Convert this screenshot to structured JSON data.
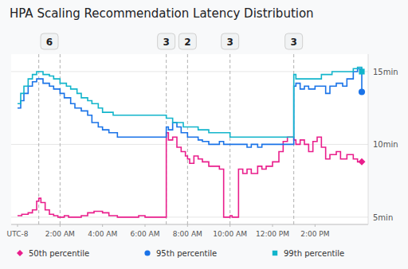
{
  "chart_data": {
    "type": "step",
    "title": "HPA Scaling Recommendation Latency Distribution",
    "xlim": [
      -0.3,
      16.5
    ],
    "ylim": [
      4.5,
      16.2
    ],
    "xticks": [
      {
        "value": 0,
        "label": "UTC-8"
      },
      {
        "value": 2,
        "label": "2:00 AM"
      },
      {
        "value": 4,
        "label": "4:00 AM"
      },
      {
        "value": 6,
        "label": "6:00 AM"
      },
      {
        "value": 8,
        "label": "8:00 AM"
      },
      {
        "value": 10,
        "label": "10:00 AM"
      },
      {
        "value": 12,
        "label": "12:00 PM"
      },
      {
        "value": 14,
        "label": "2:00 PM"
      }
    ],
    "yticks": [
      {
        "value": 5,
        "label": "5min"
      },
      {
        "value": 10,
        "label": "10min"
      },
      {
        "value": 15,
        "label": "15min"
      }
    ],
    "grid": true,
    "vlines": [
      1.0,
      2.0,
      7.0,
      8.0,
      10.0,
      13.0
    ],
    "annotations": [
      {
        "x": 1.5,
        "text": "6"
      },
      {
        "x": 7.0,
        "text": "3"
      },
      {
        "x": 8.0,
        "text": "2"
      },
      {
        "x": 10.0,
        "text": "3"
      },
      {
        "x": 13.0,
        "text": "3"
      }
    ],
    "series": [
      {
        "name": "50th percentile",
        "color": "#e91e8c",
        "marker": "diamond",
        "end_x": 16.2,
        "end_value": 8.8,
        "x": [
          0.0,
          0.2,
          0.5,
          0.7,
          0.9,
          1.0,
          1.1,
          1.3,
          1.5,
          1.7,
          1.9,
          2.0,
          2.2,
          2.4,
          2.7,
          3.0,
          3.3,
          3.6,
          4.0,
          4.3,
          4.7,
          5.0,
          5.3,
          5.7,
          6.0,
          6.3,
          6.7,
          7.0,
          7.1,
          7.3,
          7.5,
          7.7,
          7.9,
          8.0,
          8.1,
          8.3,
          8.5,
          8.7,
          9.0,
          9.3,
          9.5,
          9.7,
          10.0,
          10.1,
          10.2,
          10.4,
          10.6,
          10.8,
          11.0,
          11.3,
          11.5,
          11.7,
          12.0,
          12.3,
          12.5,
          12.7,
          13.0,
          13.1,
          13.3,
          13.5,
          13.7,
          13.9,
          14.1,
          14.3,
          14.5,
          14.7,
          15.0,
          15.2,
          15.5,
          15.8,
          16.0,
          16.2
        ],
        "values": [
          5.1,
          5.2,
          5.3,
          5.5,
          6.1,
          6.3,
          6.0,
          5.5,
          5.2,
          5.1,
          5.0,
          5.0,
          5.1,
          5.0,
          5.0,
          5.1,
          5.3,
          5.4,
          5.3,
          5.1,
          5.0,
          5.0,
          5.0,
          5.1,
          5.0,
          5.0,
          5.0,
          10.8,
          10.3,
          10.5,
          9.8,
          9.5,
          9.2,
          9.0,
          8.7,
          9.2,
          9.0,
          8.8,
          8.5,
          8.5,
          8.3,
          5.0,
          5.1,
          5.0,
          5.0,
          8.3,
          8.0,
          8.3,
          8.0,
          8.5,
          8.3,
          8.5,
          8.8,
          9.5,
          10.2,
          10.5,
          10.3,
          10.0,
          10.3,
          10.0,
          9.5,
          10.2,
          10.5,
          9.8,
          9.0,
          9.3,
          9.5,
          9.0,
          9.3,
          9.0,
          8.8,
          8.8
        ]
      },
      {
        "name": "95th percentile",
        "color": "#1a73e8",
        "marker": "circle",
        "end_x": 16.2,
        "end_value": 13.6,
        "x": [
          0.0,
          0.15,
          0.3,
          0.5,
          0.7,
          0.9,
          1.0,
          1.2,
          1.5,
          1.7,
          2.0,
          2.2,
          2.5,
          2.7,
          3.0,
          3.3,
          3.5,
          3.8,
          4.0,
          4.3,
          4.7,
          5.0,
          5.5,
          6.0,
          6.5,
          7.0,
          7.1,
          7.3,
          7.5,
          7.7,
          8.0,
          8.3,
          8.5,
          8.7,
          9.0,
          9.3,
          9.5,
          9.7,
          10.0,
          10.3,
          10.5,
          10.8,
          11.0,
          11.3,
          11.5,
          11.8,
          12.0,
          12.5,
          12.8,
          13.0,
          13.1,
          13.3,
          13.5,
          13.7,
          14.0,
          14.3,
          14.5,
          14.7,
          15.0,
          15.3,
          15.5,
          15.8,
          16.0,
          16.2
        ],
        "values": [
          12.5,
          13.0,
          13.5,
          14.0,
          14.3,
          14.5,
          14.5,
          14.2,
          14.0,
          13.8,
          13.5,
          13.2,
          12.8,
          12.5,
          12.3,
          12.0,
          11.5,
          11.2,
          11.0,
          10.8,
          10.5,
          10.5,
          10.5,
          10.5,
          10.5,
          11.2,
          11.0,
          11.5,
          11.2,
          10.8,
          10.5,
          10.5,
          10.3,
          10.2,
          10.0,
          10.0,
          10.2,
          10.0,
          10.0,
          10.0,
          10.0,
          9.8,
          10.0,
          9.8,
          10.0,
          10.0,
          10.0,
          10.0,
          10.0,
          14.0,
          14.2,
          13.8,
          14.0,
          13.8,
          14.0,
          14.0,
          13.5,
          14.0,
          14.2,
          14.0,
          14.5,
          15.0,
          15.2,
          13.6
        ]
      },
      {
        "name": "99th percentile",
        "color": "#12b5cb",
        "marker": "square",
        "end_x": 16.2,
        "end_value": 15.0,
        "x": [
          0.0,
          0.15,
          0.3,
          0.5,
          0.7,
          0.9,
          1.0,
          1.2,
          1.5,
          1.7,
          2.0,
          2.3,
          2.5,
          2.8,
          3.0,
          3.3,
          3.5,
          3.8,
          4.0,
          4.5,
          5.0,
          5.5,
          6.0,
          6.5,
          7.0,
          7.3,
          7.5,
          7.8,
          8.0,
          8.3,
          8.5,
          8.8,
          9.0,
          9.3,
          9.5,
          9.7,
          10.0,
          10.3,
          10.5,
          10.8,
          11.0,
          11.5,
          12.0,
          12.5,
          12.8,
          13.0,
          13.1,
          13.3,
          13.5,
          13.8,
          14.0,
          14.3,
          14.5,
          14.8,
          15.0,
          15.3,
          15.5,
          15.8,
          16.0,
          16.2
        ],
        "values": [
          12.8,
          13.5,
          14.0,
          14.5,
          14.8,
          15.0,
          15.0,
          14.8,
          14.7,
          14.5,
          14.2,
          14.0,
          13.8,
          13.5,
          13.2,
          13.0,
          12.8,
          12.5,
          12.2,
          12.0,
          12.0,
          12.0,
          12.0,
          12.0,
          11.8,
          11.5,
          11.5,
          11.2,
          11.2,
          11.2,
          11.0,
          11.0,
          10.8,
          10.8,
          10.8,
          10.8,
          10.5,
          10.5,
          10.5,
          10.5,
          10.5,
          10.5,
          10.5,
          10.5,
          10.5,
          14.8,
          14.5,
          14.5,
          14.5,
          14.5,
          14.5,
          14.8,
          14.8,
          15.0,
          15.0,
          15.0,
          15.0,
          15.2,
          15.3,
          15.0
        ]
      }
    ]
  }
}
